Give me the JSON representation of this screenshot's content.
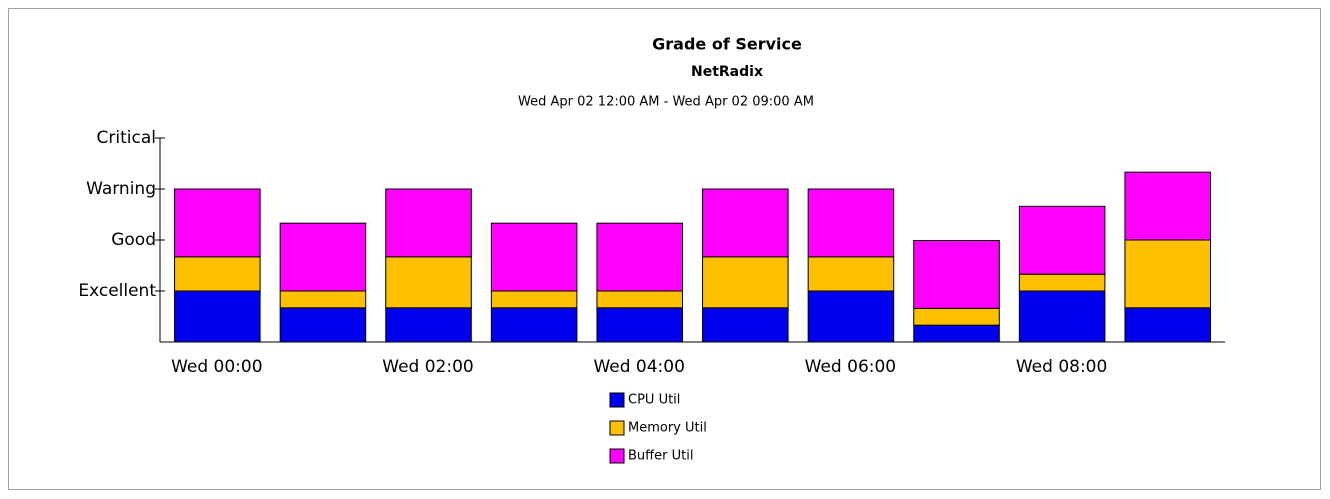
{
  "chart_data": {
    "type": "stacked_bar",
    "title": "Grade of Service",
    "subtitle": "NetRadix",
    "time_range": "Wed Apr 02 12:00 AM - Wed Apr 02 09:00 AM",
    "categories": [
      "Wed 00:00",
      null,
      "Wed 02:00",
      null,
      "Wed 04:00",
      null,
      "Wed 06:00",
      null,
      "Wed 08:00",
      null
    ],
    "series": [
      {
        "name": "CPU Util",
        "color": "#0000ee",
        "values": [
          1,
          0.67,
          0.67,
          0.67,
          0.67,
          0.67,
          1,
          0.33,
          1,
          0.67
        ]
      },
      {
        "name": "Memory Util",
        "color": "#ffc000",
        "values": [
          0.67,
          0.33,
          1,
          0.33,
          0.33,
          1,
          0.67,
          0.33,
          0.33,
          1.33
        ]
      },
      {
        "name": "Buffer Util",
        "color": "#ff00ff",
        "values": [
          1.33,
          1.33,
          1.33,
          1.33,
          1.33,
          1.33,
          1.33,
          1.33,
          1.33,
          1.33
        ]
      }
    ],
    "ylim": [
      0,
      4
    ],
    "yticks": [
      {
        "value": 1,
        "label": "Excellent"
      },
      {
        "value": 2,
        "label": "Good"
      },
      {
        "value": 3,
        "label": "Warning"
      },
      {
        "value": 4,
        "label": "Critical"
      }
    ],
    "legend": "bottom"
  }
}
